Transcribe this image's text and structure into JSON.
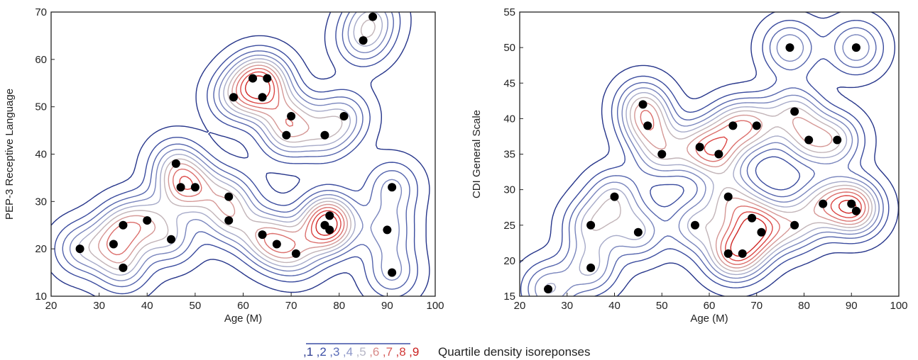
{
  "chart_data": [
    {
      "type": "scatter",
      "xlabel": "Age (M)",
      "ylabel": "PEP-3 Receptive Language",
      "xlim": [
        20,
        100
      ],
      "ylim": [
        10,
        70
      ],
      "xticks": [
        20,
        30,
        40,
        50,
        60,
        70,
        80,
        90,
        100
      ],
      "yticks": [
        10,
        20,
        30,
        40,
        50,
        60,
        70
      ],
      "overlay": "density contours",
      "points": [
        {
          "x": 26,
          "y": 20
        },
        {
          "x": 33,
          "y": 21
        },
        {
          "x": 35,
          "y": 25
        },
        {
          "x": 35,
          "y": 16
        },
        {
          "x": 40,
          "y": 26
        },
        {
          "x": 45,
          "y": 22
        },
        {
          "x": 46,
          "y": 38
        },
        {
          "x": 47,
          "y": 33
        },
        {
          "x": 50,
          "y": 33
        },
        {
          "x": 57,
          "y": 31
        },
        {
          "x": 57,
          "y": 26
        },
        {
          "x": 58,
          "y": 52
        },
        {
          "x": 62,
          "y": 56
        },
        {
          "x": 64,
          "y": 52
        },
        {
          "x": 65,
          "y": 56
        },
        {
          "x": 64,
          "y": 23
        },
        {
          "x": 67,
          "y": 21
        },
        {
          "x": 69,
          "y": 44
        },
        {
          "x": 70,
          "y": 48
        },
        {
          "x": 71,
          "y": 19
        },
        {
          "x": 77,
          "y": 44
        },
        {
          "x": 77,
          "y": 25
        },
        {
          "x": 78,
          "y": 27
        },
        {
          "x": 78,
          "y": 24
        },
        {
          "x": 81,
          "y": 48
        },
        {
          "x": 85,
          "y": 64
        },
        {
          "x": 87,
          "y": 69
        },
        {
          "x": 90,
          "y": 24
        },
        {
          "x": 91,
          "y": 33
        },
        {
          "x": 91,
          "y": 15
        }
      ]
    },
    {
      "type": "scatter",
      "xlabel": "Age (M)",
      "ylabel": "CDI General Scale",
      "xlim": [
        20,
        100
      ],
      "ylim": [
        15,
        55
      ],
      "xticks": [
        20,
        30,
        40,
        50,
        60,
        70,
        80,
        90,
        100
      ],
      "yticks": [
        15,
        20,
        25,
        30,
        35,
        40,
        45,
        50,
        55
      ],
      "overlay": "density contours",
      "points": [
        {
          "x": 26,
          "y": 16
        },
        {
          "x": 35,
          "y": 25
        },
        {
          "x": 35,
          "y": 19
        },
        {
          "x": 40,
          "y": 29
        },
        {
          "x": 45,
          "y": 24
        },
        {
          "x": 46,
          "y": 42
        },
        {
          "x": 47,
          "y": 39
        },
        {
          "x": 50,
          "y": 35
        },
        {
          "x": 57,
          "y": 25
        },
        {
          "x": 58,
          "y": 36
        },
        {
          "x": 62,
          "y": 35
        },
        {
          "x": 64,
          "y": 29
        },
        {
          "x": 64,
          "y": 21
        },
        {
          "x": 65,
          "y": 39
        },
        {
          "x": 67,
          "y": 21
        },
        {
          "x": 69,
          "y": 26
        },
        {
          "x": 70,
          "y": 39
        },
        {
          "x": 71,
          "y": 24
        },
        {
          "x": 77,
          "y": 50
        },
        {
          "x": 78,
          "y": 41
        },
        {
          "x": 78,
          "y": 25
        },
        {
          "x": 81,
          "y": 37
        },
        {
          "x": 84,
          "y": 28
        },
        {
          "x": 87,
          "y": 37
        },
        {
          "x": 90,
          "y": 28
        },
        {
          "x": 91,
          "y": 50
        },
        {
          "x": 91,
          "y": 27
        }
      ]
    }
  ],
  "legend": {
    "numbers": [
      ",1",
      ",2",
      ",3",
      ",4",
      ",5",
      ",6",
      ",7",
      ",8",
      ",9"
    ],
    "colors": [
      "#2b3a8f",
      "#3b4ea6",
      "#5a6cb8",
      "#8c96c8",
      "#b6b6c6",
      "#d88a88",
      "#d65b58",
      "#d13a38",
      "#c9201f"
    ],
    "label": "Quartile density isoreponses"
  },
  "contour_colors": [
    "#26358a",
    "#3a4b9e",
    "#5565ad",
    "#7a86bd",
    "#a7abc9",
    "#c2b4b8",
    "#d59896",
    "#dc6f6c",
    "#dc4745",
    "#cf2725"
  ]
}
